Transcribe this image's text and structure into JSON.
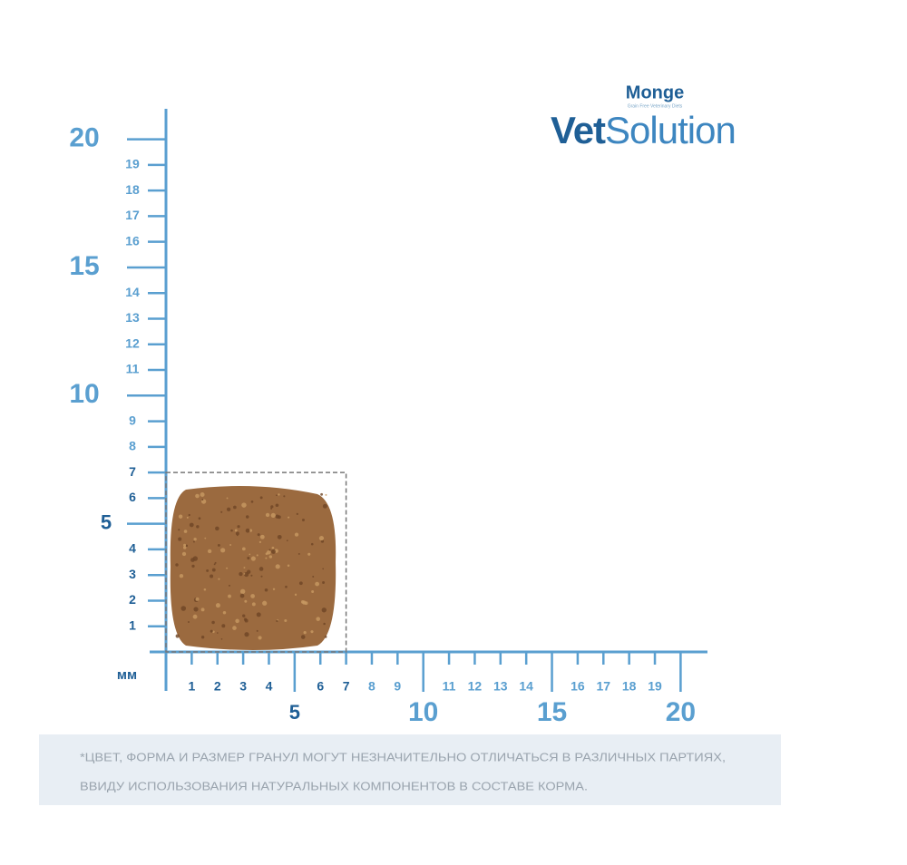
{
  "logo": {
    "brand": "Monge",
    "tagline": "Grain Free Veterinary Diets",
    "name": [
      "Vet",
      "Solution"
    ]
  },
  "ruler": {
    "unit": "мм",
    "y_ticks": [
      1,
      2,
      3,
      4,
      5,
      6,
      7,
      8,
      9,
      10,
      11,
      12,
      13,
      14,
      15,
      16,
      17,
      18,
      19,
      20
    ],
    "x_ticks": [
      1,
      2,
      3,
      4,
      5,
      6,
      7,
      8,
      9,
      10,
      11,
      12,
      13,
      14,
      15,
      16,
      17,
      18,
      19,
      20
    ],
    "kibble": {
      "width": 7,
      "height": 7
    }
  },
  "note": [
    "*ЦВЕТ, ФОРМА И РАЗМЕР ГРАНУЛ МОГУТ НЕЗНАЧИТЕЛЬНО ОТЛИЧАТЬСЯ В РАЗЛИЧНЫХ ПАРТИЯХ,",
    "ВВИДУ ИСПОЛЬЗОВАНИЯ НАТУРАЛЬНЫХ КОМПОНЕНТОВ В СОСТАВЕ КОРМА."
  ]
}
